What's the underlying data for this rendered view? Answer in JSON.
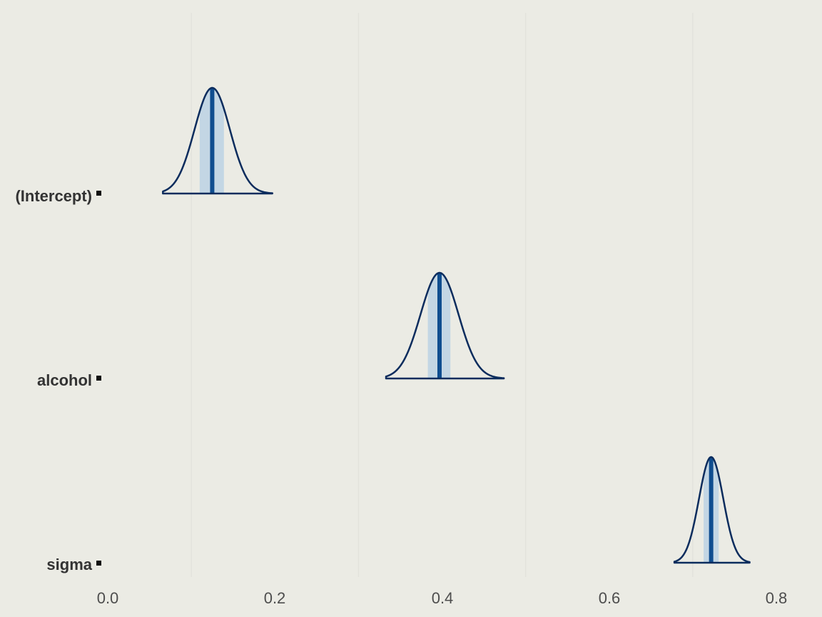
{
  "chart_data": {
    "type": "area",
    "plot_kind": "posterior density ridges with median line and inner interval shading",
    "xlim": [
      0.0,
      0.8
    ],
    "x_ticks": [
      "0.0",
      "0.2",
      "0.4",
      "0.6",
      "0.8"
    ],
    "x_tick_values": [
      0.0,
      0.2,
      0.4,
      0.6,
      0.8
    ],
    "grid": "vertical lines at 0.1, 0.3, 0.5, 0.7",
    "title": "",
    "xlabel": "",
    "ylabel": "",
    "colors": {
      "background": "#ebebe4",
      "outline": "#0b2c5d",
      "median": "#0f4d8f",
      "interval_fill": "#c3d6e4",
      "grid": "#e2e2dc",
      "tick_text": "#4d4d4d"
    },
    "parameters": [
      {
        "name": "(Intercept)",
        "median": 0.125,
        "inner_interval": [
          0.11,
          0.139
        ],
        "range": [
          0.066,
          0.197
        ]
      },
      {
        "name": "alcohol",
        "median": 0.397,
        "inner_interval": [
          0.383,
          0.41
        ],
        "range": [
          0.333,
          0.474
        ]
      },
      {
        "name": "sigma",
        "median": 0.722,
        "inner_interval": [
          0.713,
          0.731
        ],
        "range": [
          0.678,
          0.768
        ]
      }
    ]
  }
}
